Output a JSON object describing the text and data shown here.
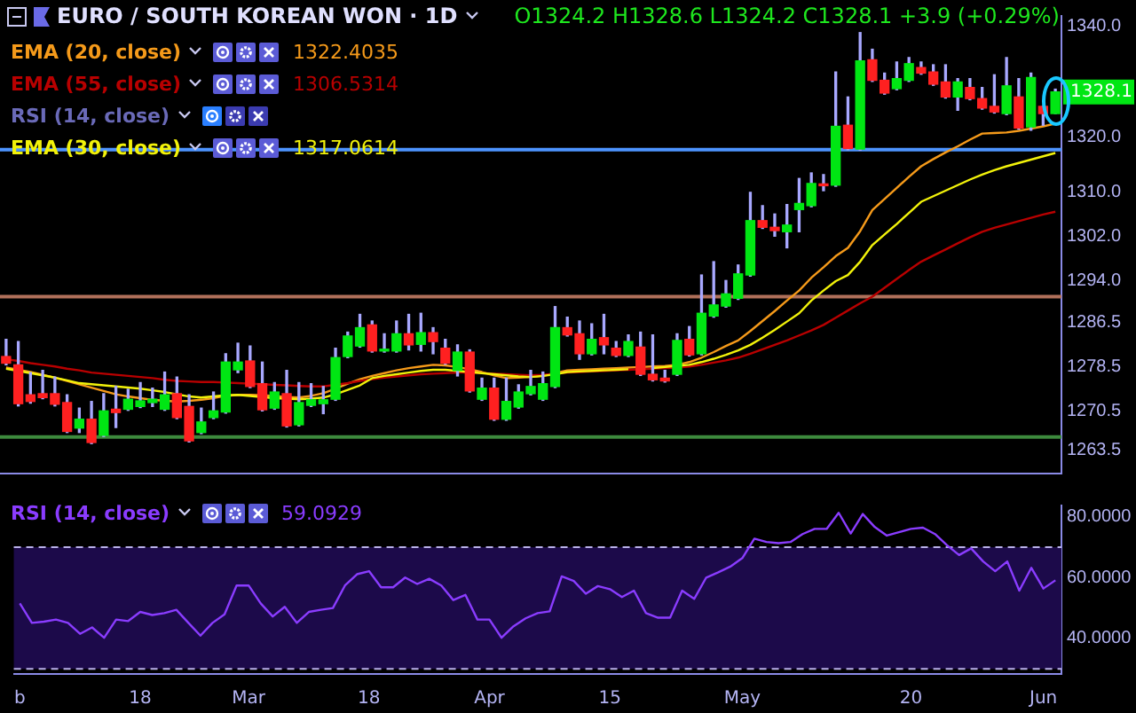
{
  "chart_data": [
    {
      "type": "candlestick",
      "title": "EURO / SOUTH KOREAN WON · 1D",
      "subtitle": "O1324.2 H1328.6 L1324.2 C1328.1 +3.9 (+0.29%)",
      "legend": "top left",
      "tick_labels": "y",
      "categories": [
        null,
        null,
        null,
        null,
        null,
        null,
        null,
        null,
        null,
        null,
        null,
        null,
        null,
        null,
        null,
        null,
        null,
        null,
        null,
        null,
        null,
        null,
        null,
        null,
        null,
        null,
        null,
        null,
        null,
        null,
        null,
        null,
        null,
        null,
        null,
        null,
        null,
        null,
        null,
        null,
        null,
        null,
        null,
        null,
        null,
        null,
        null,
        null,
        null,
        null,
        null,
        null,
        null,
        null,
        null,
        null,
        null,
        null,
        null,
        null,
        null,
        null,
        null,
        null,
        null,
        null,
        null,
        null,
        null,
        null,
        null,
        null,
        null,
        null,
        null,
        null,
        null,
        null,
        null,
        null,
        null,
        null,
        null,
        null,
        null,
        null,
        null
      ],
      "ylim": [
        1259.3,
        1341.8
      ],
      "yticks": [
        {
          "value": 1340,
          "label": "1340.0"
        },
        {
          "value": 1320,
          "label": "1320.0"
        },
        {
          "value": 1310,
          "label": "1310.0"
        },
        {
          "value": 1302,
          "label": "1302.0"
        },
        {
          "value": 1294,
          "label": "1294.0"
        },
        {
          "value": 1286.5,
          "label": "1286.5"
        },
        {
          "value": 1278.5,
          "label": "1278.5"
        },
        {
          "value": 1270.5,
          "label": "1270.5"
        },
        {
          "value": 1263.5,
          "label": "1263.5"
        }
      ],
      "ohlc": [
        [
          1280.4,
          1283.5,
          1278.9,
          1279.2
        ],
        [
          1278.9,
          1283.1,
          1271.5,
          1271.9
        ],
        [
          1273.5,
          1277.5,
          1272.0,
          1272.3
        ],
        [
          1273.7,
          1277.9,
          1272.8,
          1273.0
        ],
        [
          1273.7,
          1276.7,
          1271.5,
          1271.8
        ],
        [
          1272.1,
          1273.5,
          1266.7,
          1266.9
        ],
        [
          1267.5,
          1271.1,
          1266.7,
          1269.1
        ],
        [
          1269.1,
          1272.3,
          1264.7,
          1264.9
        ],
        [
          1266.2,
          1273.7,
          1266.0,
          1270.6
        ],
        [
          1270.9,
          1275.0,
          1267.6,
          1270.3
        ],
        [
          1270.9,
          1274.5,
          1270.7,
          1272.7
        ],
        [
          1271.4,
          1275.7,
          1271.2,
          1272.4
        ],
        [
          1272.1,
          1274.7,
          1271.4,
          1272.7
        ],
        [
          1270.9,
          1277.6,
          1270.7,
          1273.5
        ],
        [
          1273.7,
          1276.7,
          1269.2,
          1269.4
        ],
        [
          1271.4,
          1273.5,
          1265.0,
          1265.2
        ],
        [
          1266.7,
          1271.1,
          1266.5,
          1268.6
        ],
        [
          1269.4,
          1274.0,
          1269.2,
          1270.6
        ],
        [
          1270.4,
          1280.9,
          1270.2,
          1279.4
        ],
        [
          1278.0,
          1282.8,
          1277.5,
          1279.4
        ],
        [
          1279.6,
          1282.3,
          1274.8,
          1275.0
        ],
        [
          1275.5,
          1279.4,
          1270.6,
          1270.8
        ],
        [
          1271.1,
          1275.7,
          1270.9,
          1274.0
        ],
        [
          1273.7,
          1277.9,
          1267.7,
          1267.9
        ],
        [
          1268.1,
          1275.7,
          1267.9,
          1272.1
        ],
        [
          1271.6,
          1275.5,
          1271.4,
          1272.6
        ],
        [
          1271.9,
          1275.0,
          1270.1,
          1272.6
        ],
        [
          1272.7,
          1281.9,
          1272.5,
          1280.2
        ],
        [
          1280.4,
          1284.8,
          1280.2,
          1284.1
        ],
        [
          1282.3,
          1288.0,
          1282.1,
          1285.6
        ],
        [
          1286.1,
          1286.8,
          1281.2,
          1281.4
        ],
        [
          1281.4,
          1284.5,
          1281.2,
          1281.7
        ],
        [
          1281.4,
          1286.8,
          1281.2,
          1284.5
        ],
        [
          1284.5,
          1288.0,
          1281.6,
          1282.5
        ],
        [
          1282.6,
          1288.2,
          1281.4,
          1284.7
        ],
        [
          1284.7,
          1285.6,
          1280.9,
          1283.1
        ],
        [
          1281.9,
          1283.5,
          1279.0,
          1279.2
        ],
        [
          1277.9,
          1282.5,
          1276.9,
          1281.2
        ],
        [
          1281.2,
          1281.6,
          1274.0,
          1274.2
        ],
        [
          1272.7,
          1276.5,
          1272.5,
          1274.7
        ],
        [
          1274.7,
          1276.5,
          1268.9,
          1269.1
        ],
        [
          1269.1,
          1276.5,
          1268.9,
          1272.3
        ],
        [
          1271.3,
          1275.3,
          1271.1,
          1274.0
        ],
        [
          1273.7,
          1277.9,
          1273.5,
          1275.0
        ],
        [
          1272.7,
          1277.6,
          1272.5,
          1275.5
        ],
        [
          1275.0,
          1289.4,
          1274.8,
          1285.6
        ],
        [
          1285.6,
          1287.5,
          1284.1,
          1284.3
        ],
        [
          1284.5,
          1286.8,
          1279.9,
          1280.9
        ],
        [
          1280.9,
          1286.3,
          1280.7,
          1283.5
        ],
        [
          1283.8,
          1288.0,
          1280.9,
          1282.5
        ],
        [
          1281.9,
          1283.1,
          1280.4,
          1280.6
        ],
        [
          1280.6,
          1284.3,
          1280.4,
          1283.1
        ],
        [
          1282.1,
          1284.8,
          1277.0,
          1277.2
        ],
        [
          1277.2,
          1284.3,
          1276.0,
          1276.2
        ],
        [
          1276.5,
          1277.9,
          1275.8,
          1276.0
        ],
        [
          1277.2,
          1284.5,
          1277.0,
          1283.3
        ],
        [
          1283.5,
          1285.8,
          1280.5,
          1280.7
        ],
        [
          1280.9,
          1295.1,
          1280.7,
          1288.2
        ],
        [
          1287.7,
          1297.5,
          1287.5,
          1289.7
        ],
        [
          1289.5,
          1294.1,
          1289.3,
          1291.7
        ],
        [
          1290.9,
          1296.9,
          1290.7,
          1295.3
        ],
        [
          1295.1,
          1310.0,
          1294.9,
          1304.9
        ],
        [
          1304.9,
          1307.6,
          1303.5,
          1303.7
        ],
        [
          1303.7,
          1306.1,
          1302.1,
          1303.1
        ],
        [
          1302.9,
          1307.8,
          1300.0,
          1304.1
        ],
        [
          1306.9,
          1312.5,
          1302.9,
          1308.0
        ],
        [
          1307.6,
          1313.5,
          1307.4,
          1311.6
        ],
        [
          1311.5,
          1313.2,
          1310.3,
          1311.2
        ],
        [
          1311.3,
          1331.7,
          1311.1,
          1321.9
        ],
        [
          1322.1,
          1327.2,
          1317.7,
          1317.9
        ],
        [
          1317.8,
          1338.8,
          1317.6,
          1333.7
        ],
        [
          1333.9,
          1335.8,
          1330.0,
          1330.2
        ],
        [
          1330.2,
          1331.5,
          1327.7,
          1327.9
        ],
        [
          1328.7,
          1333.5,
          1328.5,
          1330.5
        ],
        [
          1330.2,
          1334.3,
          1330.0,
          1333.2
        ],
        [
          1332.5,
          1333.5,
          1331.3,
          1331.5
        ],
        [
          1331.7,
          1333.0,
          1329.3,
          1329.5
        ],
        [
          1329.9,
          1333.0,
          1327.0,
          1327.2
        ],
        [
          1327.2,
          1330.5,
          1324.8,
          1329.9
        ],
        [
          1328.9,
          1330.5,
          1326.7,
          1326.9
        ],
        [
          1326.9,
          1328.9,
          1325.0,
          1325.2
        ],
        [
          1325.5,
          1331.2,
          1324.3,
          1324.5
        ],
        [
          1324.2,
          1334.3,
          1324.0,
          1329.2
        ],
        [
          1327.2,
          1330.5,
          1321.4,
          1321.6
        ],
        [
          1321.8,
          1331.5,
          1321.2,
          1330.7
        ],
        [
          1325.5,
          1325.5,
          1322.1,
          1324.2
        ],
        [
          1324.2,
          1328.6,
          1324.2,
          1328.1
        ]
      ],
      "series": [
        {
          "type": "line",
          "name": "EMA (20, close)",
          "color": "#f59a1a",
          "values": [
            1278.4,
            1278.0,
            1277.6,
            1277.1,
            1276.6,
            1276.0,
            1275.4,
            1274.8,
            1274.2,
            1273.6,
            1273.2,
            1272.9,
            1272.6,
            1272.4,
            1272.3,
            1272.4,
            1272.6,
            1272.9,
            1273.3,
            1273.5,
            1273.5,
            1273.4,
            1273.3,
            1273.1,
            1273.0,
            1273.3,
            1273.8,
            1274.6,
            1275.5,
            1276.3,
            1276.9,
            1277.4,
            1277.9,
            1278.3,
            1278.6,
            1278.9,
            1278.8,
            1278.5,
            1278.1,
            1277.6,
            1277.0,
            1276.5,
            1276.6,
            1276.7,
            1276.9,
            1277.4,
            1277.9,
            1278.0,
            1278.1,
            1278.2,
            1278.3,
            1278.4,
            1278.5,
            1278.6,
            1278.7,
            1278.9,
            1279.4,
            1280.2,
            1281.2,
            1282.3,
            1283.3,
            1285.0,
            1286.8,
            1288.6,
            1290.5,
            1292.3,
            1294.6,
            1296.5,
            1298.5,
            1300.0,
            1303.0,
            1306.8,
            1308.8,
            1310.8,
            1312.8,
            1314.7,
            1316.0,
            1317.2,
            1318.3,
            1319.5,
            1320.6,
            1320.7,
            1320.8,
            1321.1,
            1321.5,
            1321.9,
            1322.4
          ]
        },
        {
          "type": "line",
          "name": "EMA (55, close)",
          "color": "#b80000",
          "values": [
            1279.9,
            1279.6,
            1279.2,
            1278.9,
            1278.6,
            1278.2,
            1277.9,
            1277.5,
            1277.3,
            1277.1,
            1276.9,
            1276.7,
            1276.5,
            1276.2,
            1276.0,
            1275.9,
            1275.8,
            1275.8,
            1275.7,
            1275.6,
            1275.5,
            1275.4,
            1275.3,
            1275.2,
            1275.1,
            1275.0,
            1275.0,
            1275.3,
            1275.6,
            1276.0,
            1276.3,
            1276.6,
            1276.8,
            1277.0,
            1277.2,
            1277.3,
            1277.4,
            1277.5,
            1277.5,
            1277.4,
            1277.3,
            1277.2,
            1277.1,
            1277.0,
            1277.1,
            1277.3,
            1277.5,
            1277.6,
            1277.7,
            1277.8,
            1277.9,
            1278.0,
            1278.1,
            1278.2,
            1278.3,
            1278.4,
            1278.6,
            1278.9,
            1279.3,
            1279.7,
            1280.2,
            1280.9,
            1281.7,
            1282.5,
            1283.3,
            1284.2,
            1285.1,
            1286.1,
            1287.4,
            1288.7,
            1290.0,
            1291.2,
            1292.8,
            1294.4,
            1296.0,
            1297.5,
            1298.6,
            1299.7,
            1300.8,
            1301.9,
            1302.9,
            1303.6,
            1304.2,
            1304.8,
            1305.4,
            1306.0,
            1306.5
          ]
        },
        {
          "type": "line",
          "name": "EMA (30, close)",
          "color": "#f2f20a",
          "values": [
            1278.2,
            1277.8,
            1277.4,
            1277.0,
            1276.6,
            1276.1,
            1275.6,
            1275.4,
            1275.2,
            1275.0,
            1274.8,
            1274.6,
            1274.3,
            1274.0,
            1273.6,
            1273.2,
            1273.0,
            1273.2,
            1273.4,
            1273.5,
            1273.3,
            1273.1,
            1272.9,
            1272.8,
            1272.7,
            1272.8,
            1273.0,
            1273.6,
            1274.4,
            1275.2,
            1276.5,
            1276.9,
            1277.2,
            1277.5,
            1277.8,
            1278.0,
            1278.0,
            1277.8,
            1277.6,
            1277.4,
            1277.2,
            1277.0,
            1276.8,
            1276.7,
            1276.9,
            1277.2,
            1277.6,
            1277.7,
            1277.8,
            1277.9,
            1278.0,
            1278.1,
            null,
            1278.3,
            1278.5,
            1278.7,
            1278.9,
            1279.4,
            1280.0,
            1280.7,
            1281.5,
            1282.5,
            1283.8,
            1285.2,
            1286.7,
            1288.2,
            1290.5,
            1292.3,
            1294.0,
            1295.1,
            1297.5,
            1300.5,
            1302.4,
            1304.3,
            1306.3,
            1308.3,
            1309.3,
            1310.3,
            1311.3,
            1312.3,
            1313.2,
            1314.0,
            1314.7,
            1315.3,
            1315.9,
            1316.5,
            1317.1
          ]
        }
      ],
      "ref_lines": [
        {
          "axis": "y",
          "value": 1317.7,
          "color": "#4d94ff"
        },
        {
          "axis": "y",
          "value": 1291.2,
          "color": "#b0705a"
        },
        {
          "axis": "y",
          "value": 1265.9,
          "color": "#3d8a3d"
        }
      ],
      "annotations": [
        "1322.4035",
        "1306.5314",
        "1317.0614",
        "RSI (14, close)",
        {
          "text": "1328.1",
          "y": 1328.1
        }
      ]
    },
    {
      "type": "line",
      "legend": "top left",
      "categories": [
        "b",
        null,
        null,
        null,
        null,
        null,
        null,
        null,
        null,
        null,
        "18",
        null,
        null,
        null,
        null,
        null,
        null,
        null,
        null,
        "Mar",
        null,
        null,
        null,
        null,
        null,
        null,
        null,
        null,
        null,
        "18",
        null,
        null,
        null,
        null,
        null,
        null,
        null,
        null,
        null,
        "Apr",
        null,
        null,
        null,
        null,
        null,
        null,
        null,
        null,
        null,
        "15",
        null,
        null,
        null,
        null,
        null,
        null,
        null,
        null,
        null,
        null,
        "May",
        null,
        null,
        null,
        null,
        null,
        null,
        null,
        null,
        null,
        null,
        null,
        null,
        null,
        "20",
        null,
        null,
        null,
        null,
        null,
        null,
        null,
        null,
        null,
        null,
        "Jun",
        null
      ],
      "ylim": [
        28.3,
        83.7
      ],
      "yticks": [
        {
          "value": 80,
          "label": "80.0000"
        },
        {
          "value": 60,
          "label": "60.0000"
        },
        {
          "value": 40,
          "label": "40.0000"
        }
      ],
      "series": [
        {
          "name": "RSI (14, close)",
          "color": "#8a3cff",
          "values": [
            51.5,
            45.1,
            45.5,
            46.2,
            45.1,
            41.5,
            43.6,
            40.2,
            46.2,
            45.7,
            48.7,
            47.7,
            48.3,
            49.4,
            45.1,
            40.9,
            45.1,
            47.9,
            57.4,
            57.4,
            51.5,
            47.2,
            50.4,
            45.1,
            48.7,
            49.4,
            50.0,
            57.4,
            61.1,
            62.1,
            56.8,
            56.8,
            60.0,
            57.9,
            59.6,
            57.4,
            52.6,
            54.3,
            46.2,
            46.2,
            40.2,
            44.0,
            46.6,
            48.3,
            48.9,
            60.4,
            58.9,
            54.7,
            57.2,
            56.2,
            53.6,
            55.7,
            48.3,
            46.8,
            46.8,
            55.7,
            53.0,
            60.0,
            61.7,
            63.6,
            66.4,
            72.8,
            71.7,
            71.3,
            71.7,
            74.3,
            76.0,
            76.0,
            81.3,
            74.5,
            80.9,
            76.6,
            73.8,
            74.9,
            76.0,
            76.4,
            74.3,
            70.6,
            67.4,
            69.6,
            65.3,
            62.1,
            65.3,
            55.7,
            63.2,
            56.4,
            59.1
          ]
        }
      ],
      "ref_lines": [
        {
          "axis": "y",
          "value": 70,
          "color": "#b8b0e8",
          "line_style": "dashed"
        },
        {
          "axis": "y",
          "value": 30,
          "color": "#b8b0e8",
          "line_style": "dashed"
        }
      ],
      "bands": [
        {
          "axis": "y",
          "from": 30,
          "to": 70,
          "color": "#1c0a4a"
        }
      ],
      "annotations": [
        "59.0929"
      ]
    }
  ]
}
